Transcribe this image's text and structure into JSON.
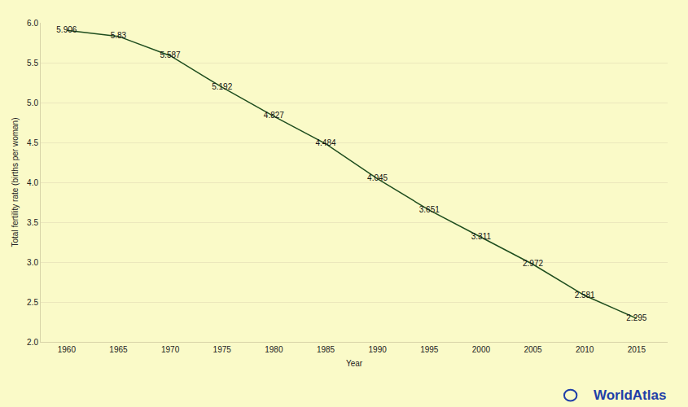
{
  "chart_data": {
    "type": "line",
    "x_label": "Year",
    "y_label": "Total fertility rate (births per woman)",
    "x": [
      1960,
      1965,
      1970,
      1975,
      1980,
      1985,
      1990,
      1995,
      2000,
      2005,
      2010,
      2015
    ],
    "values": [
      5.906,
      5.83,
      5.587,
      5.192,
      4.827,
      4.484,
      4.045,
      3.651,
      3.311,
      2.972,
      2.581,
      2.295
    ],
    "color": "#1e4d1e",
    "xlim": [
      1957.5,
      2018
    ],
    "xticks": [
      1960,
      1965,
      1970,
      1975,
      1980,
      1985,
      1990,
      1995,
      2000,
      2005,
      2010,
      2015
    ],
    "ylim": [
      2,
      6
    ],
    "yticks": [
      {
        "value": 2,
        "label": "2.0"
      },
      2.5,
      {
        "value": 3,
        "label": "3.0"
      },
      3.5,
      {
        "value": 4,
        "label": "4.0"
      },
      4.5,
      {
        "value": 5,
        "label": "5.0"
      },
      5.5,
      {
        "value": 6,
        "label": "6.0"
      }
    ],
    "grid": true,
    "data_labels": true,
    "line_style": "solid",
    "source": "WorldAtlas"
  }
}
